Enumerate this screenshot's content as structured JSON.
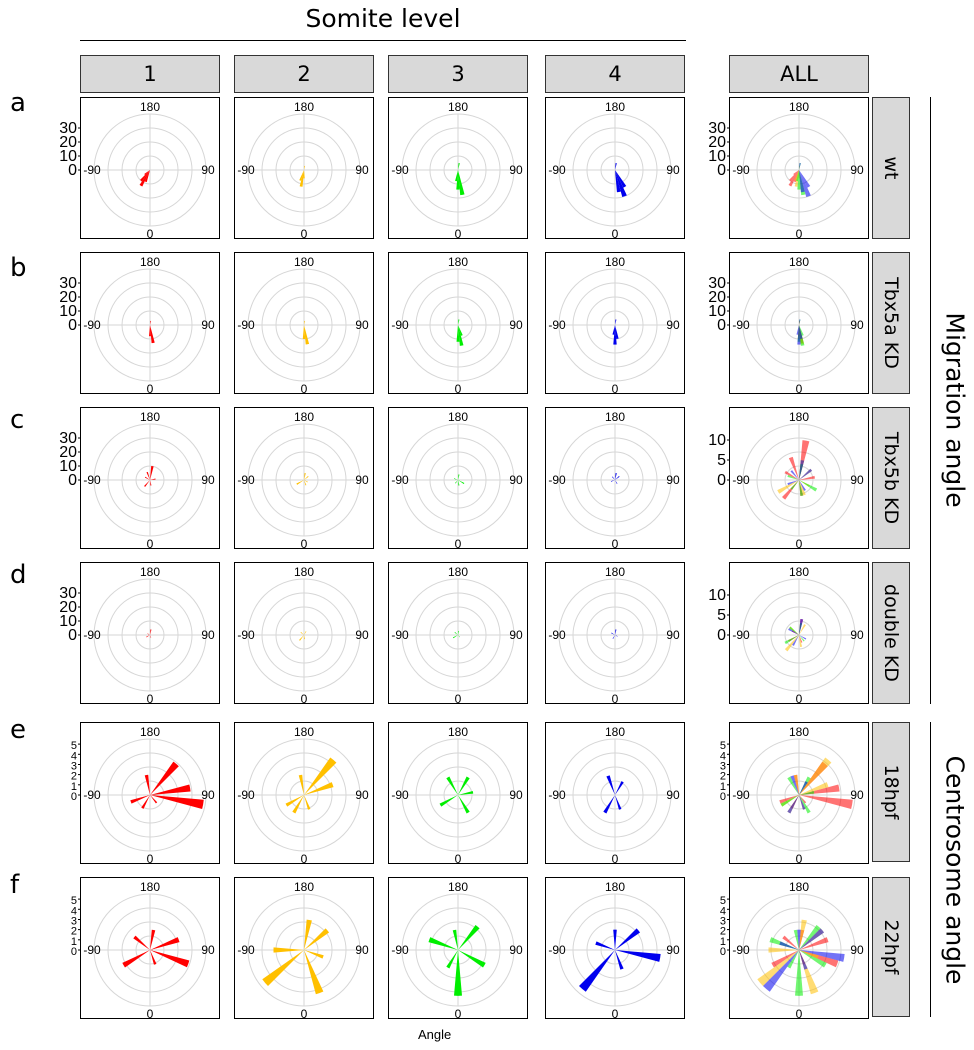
{
  "header": {
    "title": "Somite level",
    "x_axis_label": "Angle"
  },
  "columns": [
    "1",
    "2",
    "3",
    "4",
    "ALL"
  ],
  "column_colors": [
    "#ff0000",
    "#ffc000",
    "#00ee00",
    "#0000ee"
  ],
  "row_labels": [
    "wt",
    "Tbx5a KD",
    "Tbx5b KD",
    "double KD",
    "18hpf",
    "22hpf"
  ],
  "row_letters": [
    "a",
    "b",
    "c",
    "d",
    "e",
    "f"
  ],
  "groups": {
    "migration": "Migration angle",
    "centrosome": "Centrosome angle"
  },
  "angle_labels": {
    "top": "180",
    "bottom": "0",
    "left": "-90",
    "right": "90"
  },
  "chart_data": [
    {
      "type": "polar-bar",
      "title": "Migration angle",
      "theta_labels": [
        "180",
        "90",
        "0",
        "-90"
      ],
      "rows": [
        {
          "row": "wt",
          "r_ticks": [
            "30",
            "20",
            "10",
            "0"
          ],
          "r_max": 40,
          "series": [
            {
              "name": "1",
              "bars": [
                {
                  "angle": -20,
                  "value": 9
                },
                {
                  "angle": -30,
                  "value": 13
                },
                {
                  "angle": -40,
                  "value": 10
                },
                {
                  "angle": -50,
                  "value": 5
                }
              ]
            },
            {
              "name": "2",
              "bars": [
                {
                  "angle": 170,
                  "value": 3
                },
                {
                  "angle": -10,
                  "value": 12
                },
                {
                  "angle": -20,
                  "value": 8
                },
                {
                  "angle": 0,
                  "value": 6
                }
              ]
            },
            {
              "name": "3",
              "bars": [
                {
                  "angle": 170,
                  "value": 5
                },
                {
                  "angle": 0,
                  "value": 14
                },
                {
                  "angle": 10,
                  "value": 18
                },
                {
                  "angle": -10,
                  "value": 8
                }
              ]
            },
            {
              "name": "4",
              "bars": [
                {
                  "angle": 170,
                  "value": 5
                },
                {
                  "angle": 10,
                  "value": 16
                },
                {
                  "angle": 20,
                  "value": 20
                },
                {
                  "angle": 30,
                  "value": 14
                }
              ]
            }
          ]
        },
        {
          "row": "Tbx5a KD",
          "r_ticks": [
            "30",
            "20",
            "10",
            "0"
          ],
          "r_max": 40,
          "series": [
            {
              "name": "1",
              "bars": [
                {
                  "angle": 170,
                  "value": 3
                },
                {
                  "angle": 10,
                  "value": 13
                },
                {
                  "angle": 0,
                  "value": 8
                }
              ]
            },
            {
              "name": "2",
              "bars": [
                {
                  "angle": 170,
                  "value": 3
                },
                {
                  "angle": 10,
                  "value": 14
                },
                {
                  "angle": 0,
                  "value": 10
                }
              ]
            },
            {
              "name": "3",
              "bars": [
                {
                  "angle": 170,
                  "value": 4
                },
                {
                  "angle": 10,
                  "value": 15
                },
                {
                  "angle": 0,
                  "value": 12
                },
                {
                  "angle": 20,
                  "value": 8
                }
              ]
            },
            {
              "name": "4",
              "bars": [
                {
                  "angle": 170,
                  "value": 4
                },
                {
                  "angle": 0,
                  "value": 14
                },
                {
                  "angle": 10,
                  "value": 10
                },
                {
                  "angle": -10,
                  "value": 7
                }
              ]
            }
          ]
        },
        {
          "row": "Tbx5b KD",
          "r_ticks": [
            "30",
            "20",
            "10",
            "0"
          ],
          "r_max": 40,
          "all_r_ticks": [
            "10",
            "5",
            "0"
          ],
          "all_r_max": 14,
          "series": [
            {
              "name": "1",
              "bars": [
                {
                  "angle": 170,
                  "value": 10
                },
                {
                  "angle": 200,
                  "value": 6
                },
                {
                  "angle": -40,
                  "value": 6
                },
                {
                  "angle": 100,
                  "value": 4
                },
                {
                  "angle": 10,
                  "value": 4
                },
                {
                  "angle": 240,
                  "value": 4
                }
              ]
            },
            {
              "name": "2",
              "bars": [
                {
                  "angle": 170,
                  "value": 5
                },
                {
                  "angle": -60,
                  "value": 6
                },
                {
                  "angle": 130,
                  "value": 4
                },
                {
                  "angle": 60,
                  "value": 3
                },
                {
                  "angle": 20,
                  "value": 4
                }
              ]
            },
            {
              "name": "3",
              "bars": [
                {
                  "angle": 170,
                  "value": 4
                },
                {
                  "angle": 60,
                  "value": 5
                },
                {
                  "angle": 250,
                  "value": 3
                },
                {
                  "angle": 10,
                  "value": 4
                },
                {
                  "angle": -40,
                  "value": 3
                }
              ]
            },
            {
              "name": "4",
              "bars": [
                {
                  "angle": 170,
                  "value": 5
                },
                {
                  "angle": 130,
                  "value": 4
                },
                {
                  "angle": 30,
                  "value": 3
                },
                {
                  "angle": -70,
                  "value": 3
                },
                {
                  "angle": 220,
                  "value": 3
                }
              ]
            }
          ]
        },
        {
          "row": "double KD",
          "r_ticks": [
            "30",
            "20",
            "10",
            "0"
          ],
          "r_max": 40,
          "all_r_ticks": [
            "10",
            "5",
            "0"
          ],
          "all_r_max": 14,
          "series": [
            {
              "name": "1",
              "bars": [
                {
                  "angle": 170,
                  "value": 4
                },
                {
                  "angle": -60,
                  "value": 3
                },
                {
                  "angle": 240,
                  "value": 2
                },
                {
                  "angle": 20,
                  "value": 2
                }
              ]
            },
            {
              "name": "2",
              "bars": [
                {
                  "angle": -40,
                  "value": 5
                },
                {
                  "angle": 230,
                  "value": 3
                },
                {
                  "angle": 150,
                  "value": 3
                },
                {
                  "angle": 10,
                  "value": 3
                }
              ]
            },
            {
              "name": "3",
              "bars": [
                {
                  "angle": 230,
                  "value": 3
                },
                {
                  "angle": -60,
                  "value": 4
                },
                {
                  "angle": 170,
                  "value": 3
                },
                {
                  "angle": 40,
                  "value": 2
                }
              ]
            },
            {
              "name": "4",
              "bars": [
                {
                  "angle": 170,
                  "value": 4
                },
                {
                  "angle": -30,
                  "value": 3
                },
                {
                  "angle": 240,
                  "value": 3
                },
                {
                  "angle": 60,
                  "value": 2
                }
              ]
            }
          ]
        }
      ]
    },
    {
      "type": "polar-bar",
      "title": "Centrosome angle",
      "theta_labels": [
        "180",
        "90",
        "0",
        "-90"
      ],
      "rows": [
        {
          "row": "18hpf",
          "r_ticks": [
            "5",
            "4",
            "3",
            "2",
            "1",
            "0"
          ],
          "r_max": 5.5,
          "series": [
            {
              "name": "1",
              "bars": [
                {
                  "angle": 140,
                  "value": 4
                },
                {
                  "angle": 100,
                  "value": 4
                },
                {
                  "angle": 80,
                  "value": 5.3
                },
                {
                  "angle": 190,
                  "value": 2
                },
                {
                  "angle": -70,
                  "value": 2
                },
                {
                  "angle": -30,
                  "value": 1.5
                },
                {
                  "angle": 40,
                  "value": 1
                }
              ]
            },
            {
              "name": "2",
              "bars": [
                {
                  "angle": 140,
                  "value": 4.5
                },
                {
                  "angle": 110,
                  "value": 3
                },
                {
                  "angle": -60,
                  "value": 2
                },
                {
                  "angle": -30,
                  "value": 2
                },
                {
                  "angle": 190,
                  "value": 2
                },
                {
                  "angle": 20,
                  "value": 1.5
                }
              ]
            },
            {
              "name": "3",
              "bars": [
                {
                  "angle": 150,
                  "value": 2
                },
                {
                  "angle": 210,
                  "value": 2
                },
                {
                  "angle": -60,
                  "value": 2
                },
                {
                  "angle": 30,
                  "value": 2
                },
                {
                  "angle": 100,
                  "value": 1.5
                }
              ]
            },
            {
              "name": "4",
              "bars": [
                {
                  "angle": 150,
                  "value": 1.5
                },
                {
                  "angle": 200,
                  "value": 2
                },
                {
                  "angle": -30,
                  "value": 2
                },
                {
                  "angle": 20,
                  "value": 1.5
                }
              ]
            }
          ]
        },
        {
          "row": "22hpf",
          "r_ticks": [
            "5",
            "4",
            "3",
            "2",
            "1",
            "0"
          ],
          "r_max": 5.5,
          "series": [
            {
              "name": "1",
              "bars": [
                {
                  "angle": 70,
                  "value": 4
                },
                {
                  "angle": -60,
                  "value": 3
                },
                {
                  "angle": 170,
                  "value": 2
                },
                {
                  "angle": 110,
                  "value": 3
                },
                {
                  "angle": 20,
                  "value": 1.5
                },
                {
                  "angle": 230,
                  "value": 2
                }
              ]
            },
            {
              "name": "2",
              "bars": [
                {
                  "angle": -50,
                  "value": 5
                },
                {
                  "angle": 20,
                  "value": 4.5
                },
                {
                  "angle": 170,
                  "value": 3
                },
                {
                  "angle": 130,
                  "value": 3
                },
                {
                  "angle": -90,
                  "value": 3
                },
                {
                  "angle": 70,
                  "value": 2
                }
              ]
            },
            {
              "name": "3",
              "bars": [
                {
                  "angle": 0,
                  "value": 4.5
                },
                {
                  "angle": 140,
                  "value": 3
                },
                {
                  "angle": -110,
                  "value": 3
                },
                {
                  "angle": 60,
                  "value": 3
                },
                {
                  "angle": -30,
                  "value": 2
                },
                {
                  "angle": 190,
                  "value": 2
                }
              ]
            },
            {
              "name": "4",
              "bars": [
                {
                  "angle": -40,
                  "value": 5
                },
                {
                  "angle": 80,
                  "value": 4.5
                },
                {
                  "angle": 130,
                  "value": 3
                },
                {
                  "angle": 180,
                  "value": 2
                },
                {
                  "angle": 20,
                  "value": 2
                },
                {
                  "angle": -110,
                  "value": 2
                }
              ]
            }
          ]
        }
      ]
    }
  ]
}
